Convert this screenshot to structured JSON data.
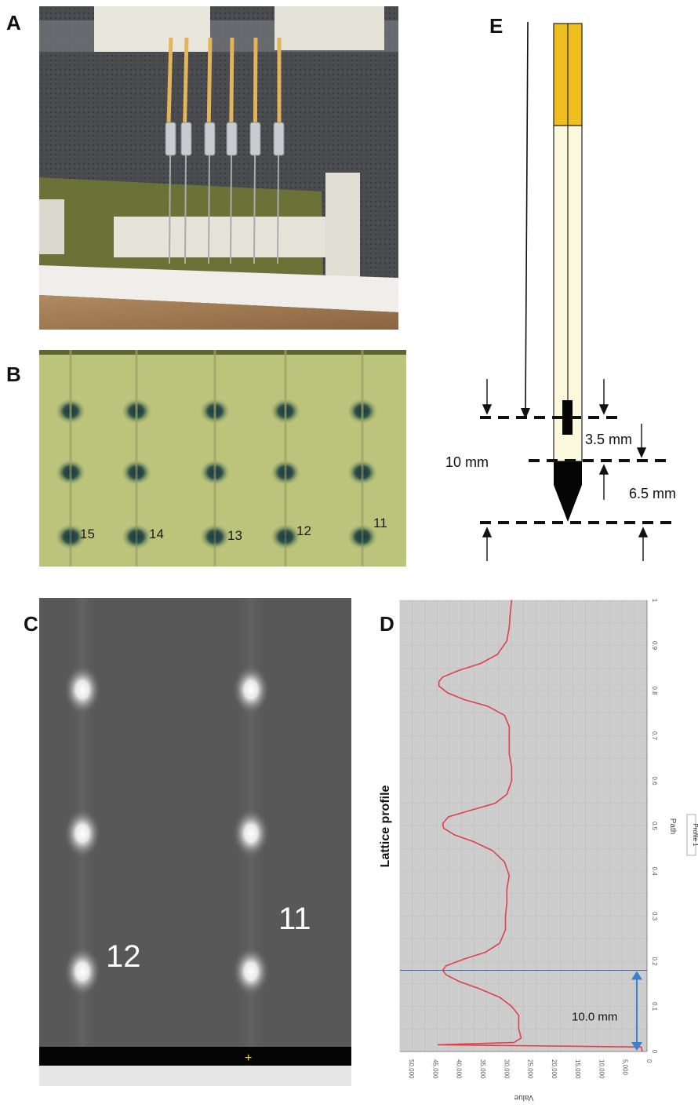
{
  "panels": {
    "a": {
      "label": "A"
    },
    "b": {
      "label": "B",
      "handwritten": [
        "15",
        "14",
        "13",
        "12",
        "11"
      ]
    },
    "c": {
      "label": "C",
      "handwritten": [
        "12",
        "11"
      ]
    },
    "d": {
      "label": "D"
    },
    "e": {
      "label": "E"
    }
  },
  "diagram": {
    "dim_total": "10 mm",
    "dim_upper": "3.5 mm",
    "dim_lower": "6.5 mm"
  },
  "chart_data": {
    "type": "line",
    "title": "Lattice profile",
    "xlabel": "Path",
    "ylabel": "Value",
    "legend": "Profile 1",
    "x_ticks": [
      "0",
      "0.1",
      "0.2",
      "0.3",
      "0.4",
      "0.5",
      "0.6",
      "0.7",
      "0.8",
      "0.9",
      "1"
    ],
    "y_ticks": [
      "50,000",
      "45,000",
      "40,000",
      "35,000",
      "30,000",
      "25,000",
      "20,000",
      "15,000",
      "10,000",
      "5,000",
      "0"
    ],
    "xlim": [
      0,
      1
    ],
    "ylim": [
      0,
      52000
    ],
    "annotation": "10.0 mm",
    "marker_x": 0.18,
    "series": [
      {
        "x": [
          0.0,
          0.01,
          0.015,
          0.02,
          0.03,
          0.05,
          0.08,
          0.1,
          0.12,
          0.14,
          0.155,
          0.17,
          0.18,
          0.19,
          0.205,
          0.22,
          0.24,
          0.27,
          0.3,
          0.33,
          0.36,
          0.39,
          0.42,
          0.445,
          0.465,
          0.48,
          0.495,
          0.505,
          0.52,
          0.535,
          0.55,
          0.57,
          0.6,
          0.63,
          0.66,
          0.69,
          0.72,
          0.745,
          0.765,
          0.78,
          0.795,
          0.81,
          0.82,
          0.83,
          0.845,
          0.86,
          0.88,
          0.91,
          0.94,
          0.97,
          1.0
        ],
        "y": [
          1000,
          1200,
          44000,
          28000,
          26500,
          27000,
          27000,
          28500,
          31000,
          35500,
          39500,
          42300,
          43000,
          42300,
          38500,
          34000,
          31000,
          29800,
          29800,
          29500,
          29500,
          29000,
          30000,
          32500,
          36500,
          40500,
          42800,
          43000,
          41800,
          37000,
          32000,
          29500,
          28500,
          28500,
          29000,
          29000,
          29000,
          30000,
          33500,
          38500,
          42000,
          43800,
          43800,
          43000,
          39500,
          35000,
          31500,
          29500,
          29000,
          28800,
          28500
        ]
      }
    ]
  }
}
